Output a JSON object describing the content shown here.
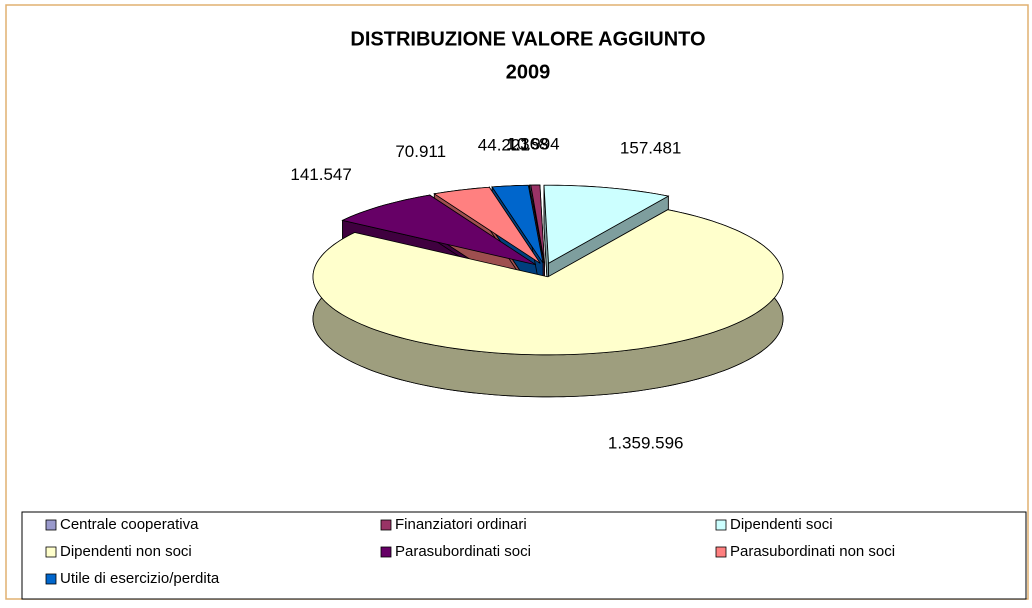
{
  "chart_data": {
    "type": "pie3d",
    "title": "DISTRIBUZIONE VALORE AGGIUNTO",
    "subtitle": "2009",
    "categories": [
      "Centrale cooperativa",
      "Finanziatori ordinari",
      "Dipendenti soci",
      "Dipendenti non soci",
      "Parasubordinati soci",
      "Parasubordinati non soci",
      "Utile di esercizio/perdita"
    ],
    "values": [
      1368,
      10994,
      157481,
      1359596,
      141547,
      70911,
      44221
    ],
    "value_labels": [
      "1.368",
      "10.994",
      "157.481",
      "1.359.596",
      "141.547",
      "70.911",
      "44.221"
    ],
    "colors": [
      "#9999cc",
      "#993366",
      "#ccffff",
      "#ffffcc",
      "#660066",
      "#ff8080",
      "#0066cc"
    ],
    "legend": "bottom"
  }
}
